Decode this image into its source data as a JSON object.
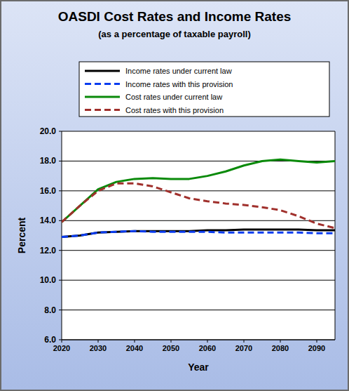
{
  "chart_data": {
    "type": "line",
    "title": "OASDI Cost Rates and Income Rates",
    "subtitle": "(as a percentage of taxable payroll)",
    "x_label": "Year",
    "y_label": "Percent",
    "x": [
      2020,
      2025,
      2030,
      2035,
      2040,
      2045,
      2050,
      2055,
      2060,
      2065,
      2070,
      2075,
      2080,
      2085,
      2090,
      2095
    ],
    "series": [
      {
        "name": "Income rates under current law",
        "color": "#000000",
        "line_style": "solid",
        "values": [
          12.9,
          13.0,
          13.2,
          13.25,
          13.3,
          13.3,
          13.3,
          13.3,
          13.35,
          13.35,
          13.4,
          13.4,
          13.4,
          13.4,
          13.35,
          13.35
        ]
      },
      {
        "name": "Income rates with this provision",
        "color": "#0a3cf0",
        "line_style": "dashed",
        "values": [
          12.9,
          13.0,
          13.2,
          13.25,
          13.3,
          13.25,
          13.25,
          13.25,
          13.25,
          13.2,
          13.2,
          13.2,
          13.2,
          13.2,
          13.15,
          13.15
        ]
      },
      {
        "name": "Cost rates under current law",
        "color": "#0a8a0a",
        "line_style": "solid",
        "values": [
          13.9,
          15.0,
          16.1,
          16.6,
          16.8,
          16.85,
          16.8,
          16.8,
          17.0,
          17.3,
          17.7,
          18.0,
          18.1,
          18.0,
          17.9,
          18.0
        ]
      },
      {
        "name": "Cost rates with this provision",
        "color": "#a0302c",
        "line_style": "dashed",
        "values": [
          13.9,
          15.0,
          16.0,
          16.5,
          16.5,
          16.3,
          15.9,
          15.5,
          15.3,
          15.15,
          15.05,
          14.9,
          14.7,
          14.3,
          13.8,
          13.5
        ]
      }
    ],
    "xlim": [
      2020,
      2095
    ],
    "xticks": [
      2020,
      2030,
      2040,
      2050,
      2060,
      2070,
      2080,
      2090
    ],
    "ylim": [
      6,
      20
    ],
    "yticks": [
      {
        "value": 6,
        "label": "6.0"
      },
      {
        "value": 8,
        "label": "8.0"
      },
      {
        "value": 10,
        "label": "10.0"
      },
      {
        "value": 12,
        "label": "12.0"
      },
      {
        "value": 14,
        "label": "14.0"
      },
      {
        "value": 16,
        "label": "16.0"
      },
      {
        "value": 18,
        "label": "18.0"
      },
      {
        "value": 20,
        "label": "20.0"
      }
    ],
    "grid": true,
    "legend": "top"
  }
}
